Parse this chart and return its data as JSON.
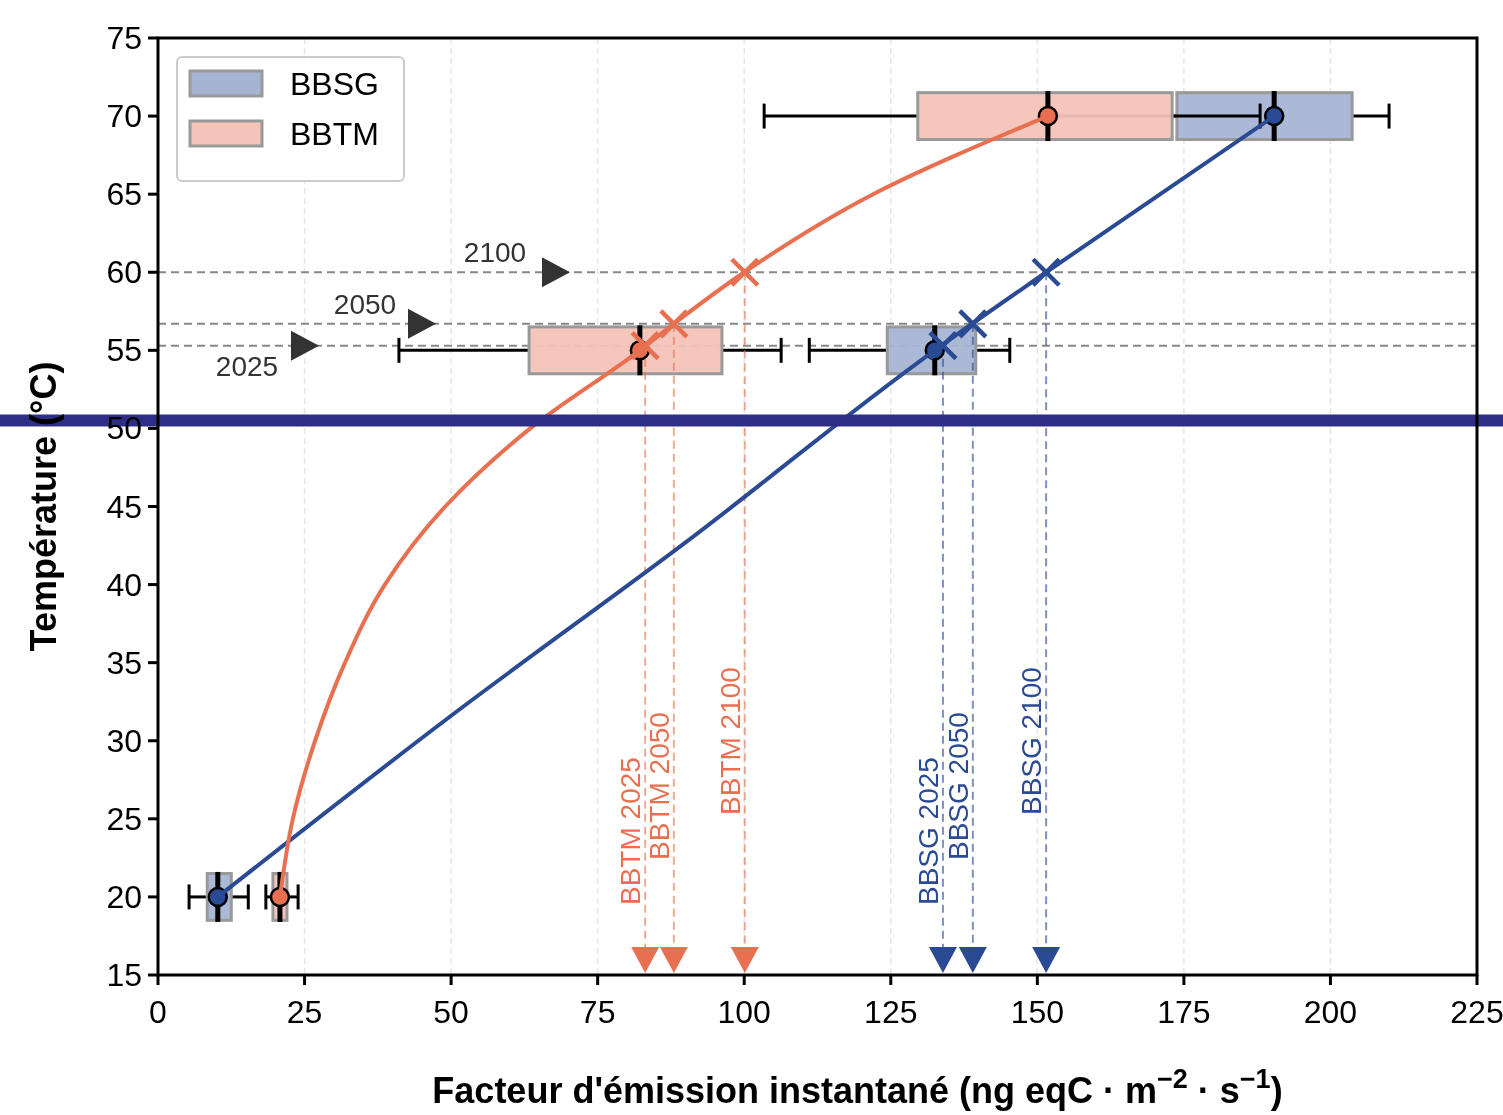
{
  "chart_data": {
    "type": "line",
    "orientation": "horizontal",
    "xlabel": "Facteur d'émission instantané (ng eqC · m$^{−2}$ · s$^{−1}$)",
    "ylabel": "Température (°C)",
    "xlim": [
      0,
      225
    ],
    "xticks": [
      0,
      25,
      50,
      75,
      100,
      125,
      150,
      175,
      200,
      225
    ],
    "ylim": [
      15,
      75
    ],
    "yticks": [
      15,
      20,
      25,
      30,
      35,
      40,
      45,
      50,
      55,
      60,
      65,
      70,
      75
    ],
    "grid": "x",
    "legend": "top left",
    "annotations": [
      {
        "text": "2025",
        "y": 55.3
      },
      {
        "text": "2050",
        "y": 56.7
      },
      {
        "text": "2100",
        "y": 60
      }
    ],
    "series": [
      {
        "name": "BBSG",
        "type": "box",
        "color": "#a6b4d4",
        "x": [
          20,
          55,
          70
        ],
        "boxes": [
          {
            "low": 5.3,
            "q1": 8.4,
            "median": 10.2,
            "q3": 12.5,
            "high": 15.4,
            "mean": 10.2
          },
          {
            "low": 111.1,
            "q1": 124.4,
            "median": 132.5,
            "q3": 139.5,
            "high": 145.3,
            "mean": 132.5
          },
          {
            "low": 152,
            "q1": 173.8,
            "median": 190.4,
            "q3": 203.7,
            "high": 210,
            "mean": 190.4
          }
        ]
      },
      {
        "name": "BBTM",
        "type": "box",
        "color": "#f4c4b8",
        "x": [
          20,
          55,
          70
        ],
        "boxes": [
          {
            "low": 18.4,
            "q1": 19.6,
            "median": 20.8,
            "q3": 22,
            "high": 23.9,
            "mean": 20.8
          },
          {
            "low": 41.1,
            "q1": 63.3,
            "median": 82.2,
            "q3": 96.2,
            "high": 106.3,
            "mean": 82.2
          },
          {
            "low": 103.4,
            "q1": 129.6,
            "median": 151.8,
            "q3": 173,
            "high": 188,
            "mean": 151.8
          }
        ]
      },
      {
        "color": "#2a4a94",
        "x": [
          20,
          31.6,
          42.7,
          55,
          60,
          70
        ],
        "values": [
          10.2,
          50,
          90,
          132.5,
          151.5,
          190.4
        ]
      },
      {
        "color": "#e87050",
        "x": [
          20,
          25,
          30,
          35,
          40,
          45,
          50,
          55,
          56.7,
          60,
          65,
          70
        ],
        "values": [
          20.8,
          23,
          26.8,
          31.9,
          38.7,
          49,
          63.5,
          82.2,
          88,
          100,
          122,
          151.8
        ]
      },
      {
        "type": "scatter",
        "color": "#2a4a94",
        "marker": "cross",
        "x": [
          55.3,
          56.7,
          60
        ],
        "values": [
          133.9,
          139,
          151.5
        ]
      },
      {
        "type": "scatter",
        "color": "#e87050",
        "marker": "cross",
        "x": [
          55.3,
          56.7,
          60
        ],
        "values": [
          83.1,
          88,
          100.1
        ]
      }
    ],
    "ref_lines": [
      {
        "axis": "y",
        "value": 55.3,
        "color": "#888888",
        "line_style": "dashed"
      },
      {
        "axis": "y",
        "value": 56.7,
        "color": "#888888",
        "line_style": "dashed"
      },
      {
        "axis": "y",
        "value": 60,
        "color": "#888888",
        "line_style": "dashed"
      },
      {
        "axis": "y",
        "value": 50.5,
        "color": "#2e2e86",
        "line_style": "solid"
      },
      {
        "axis": "x",
        "value": 83.1,
        "label": "BBTM 2025",
        "color": "#e87050",
        "line_style": "dashed"
      },
      {
        "axis": "x",
        "value": 88,
        "label": "BBTM 2050",
        "color": "#e87050",
        "line_style": "dashed"
      },
      {
        "axis": "x",
        "value": 100.1,
        "label": "BBTM 2100",
        "color": "#e87050",
        "line_style": "dashed"
      },
      {
        "axis": "x",
        "value": 133.9,
        "label": "BBSG 2025",
        "color": "#2a4a94",
        "line_style": "dashed"
      },
      {
        "axis": "x",
        "value": 139,
        "label": "BBSG 2050",
        "color": "#2a4a94",
        "line_style": "dashed"
      },
      {
        "axis": "x",
        "value": 151.5,
        "label": "BBSG 2100",
        "color": "#2a4a94",
        "line_style": "dashed"
      }
    ]
  }
}
